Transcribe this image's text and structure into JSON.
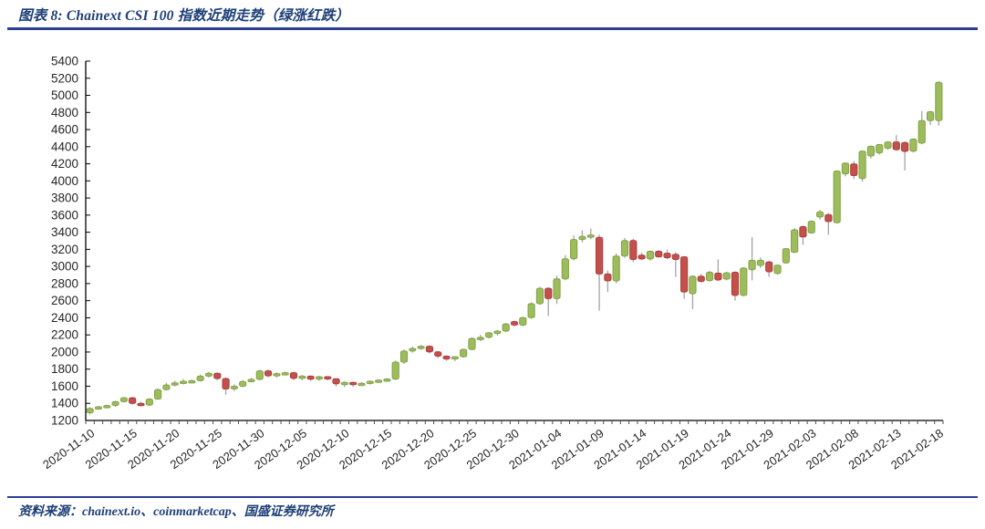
{
  "header": {
    "title": "图表 8: Chainext CSI 100 指数近期走势（绿涨红跌）"
  },
  "footer": {
    "source": "资料来源：chainext.io、coinmarketcap、国盛证券研究所"
  },
  "colors": {
    "up": "#9DBC5C",
    "up_border": "#83A248",
    "down": "#C4504C",
    "down_border": "#A93E3C",
    "wick": "#A3A3A3",
    "axis": "#000000",
    "accent_blue": "#2B3F92",
    "text_blue": "#1D3F76"
  },
  "chart_data": {
    "type": "candlestick",
    "title": "Chainext CSI 100 指数近期走势",
    "legend_note": "绿涨红跌",
    "ylim": [
      1200,
      5400
    ],
    "ytick_step": 200,
    "grid": false,
    "x_label_every": 5,
    "x_labels": [
      "2020-11-10",
      "2020-11-15",
      "2020-11-20",
      "2020-11-25",
      "2020-11-30",
      "2020-12-05",
      "2020-12-10",
      "2020-12-15",
      "2020-12-20",
      "2020-12-25",
      "2020-12-30",
      "2021-01-04",
      "2021-01-09",
      "2021-01-14",
      "2021-01-19",
      "2021-01-24",
      "2021-01-29",
      "2021-02-03",
      "2021-02-08",
      "2021-02-13",
      "2021-02-18"
    ],
    "ohlc_format": [
      "open",
      "high",
      "low",
      "close"
    ],
    "ohlc": [
      [
        1290,
        1355,
        1270,
        1340
      ],
      [
        1340,
        1370,
        1325,
        1360
      ],
      [
        1355,
        1385,
        1345,
        1375
      ],
      [
        1375,
        1430,
        1360,
        1420
      ],
      [
        1420,
        1475,
        1410,
        1465
      ],
      [
        1465,
        1475,
        1385,
        1400
      ],
      [
        1400,
        1420,
        1365,
        1380
      ],
      [
        1380,
        1460,
        1372,
        1450
      ],
      [
        1450,
        1575,
        1443,
        1560
      ],
      [
        1560,
        1640,
        1550,
        1615
      ],
      [
        1615,
        1665,
        1598,
        1640
      ],
      [
        1640,
        1685,
        1622,
        1658
      ],
      [
        1650,
        1680,
        1636,
        1665
      ],
      [
        1665,
        1735,
        1655,
        1718
      ],
      [
        1718,
        1768,
        1702,
        1752
      ],
      [
        1752,
        1762,
        1668,
        1690
      ],
      [
        1690,
        1700,
        1500,
        1568
      ],
      [
        1568,
        1622,
        1545,
        1600
      ],
      [
        1600,
        1672,
        1590,
        1655
      ],
      [
        1655,
        1700,
        1645,
        1680
      ],
      [
        1680,
        1792,
        1670,
        1780
      ],
      [
        1780,
        1795,
        1702,
        1722
      ],
      [
        1722,
        1762,
        1700,
        1748
      ],
      [
        1748,
        1772,
        1730,
        1758
      ],
      [
        1758,
        1766,
        1672,
        1692
      ],
      [
        1692,
        1732,
        1670,
        1718
      ],
      [
        1718,
        1726,
        1662,
        1682
      ],
      [
        1682,
        1722,
        1665,
        1712
      ],
      [
        1712,
        1720,
        1668,
        1688
      ],
      [
        1688,
        1692,
        1598,
        1628
      ],
      [
        1628,
        1658,
        1590,
        1645
      ],
      [
        1645,
        1652,
        1593,
        1618
      ],
      [
        1618,
        1648,
        1605,
        1635
      ],
      [
        1635,
        1668,
        1620,
        1658
      ],
      [
        1658,
        1682,
        1645,
        1672
      ],
      [
        1672,
        1695,
        1652,
        1685
      ],
      [
        1685,
        1898,
        1672,
        1882
      ],
      [
        1882,
        2028,
        1862,
        2012
      ],
      [
        2012,
        2062,
        1992,
        2042
      ],
      [
        2042,
        2082,
        2025,
        2068
      ],
      [
        2068,
        2078,
        1982,
        2002
      ],
      [
        2002,
        2012,
        1928,
        1952
      ],
      [
        1952,
        1962,
        1898,
        1918
      ],
      [
        1918,
        1952,
        1893,
        1945
      ],
      [
        1945,
        2038,
        1935,
        2030
      ],
      [
        2030,
        2172,
        2022,
        2158
      ],
      [
        2158,
        2202,
        2128,
        2172
      ],
      [
        2172,
        2232,
        2158,
        2225
      ],
      [
        2225,
        2255,
        2192,
        2245
      ],
      [
        2245,
        2338,
        2235,
        2328
      ],
      [
        2355,
        2368,
        2298,
        2315
      ],
      [
        2315,
        2412,
        2302,
        2402
      ],
      [
        2402,
        2582,
        2390,
        2565
      ],
      [
        2565,
        2762,
        2552,
        2745
      ],
      [
        2745,
        2758,
        2422,
        2625
      ],
      [
        2625,
        2892,
        2562,
        2855
      ],
      [
        2855,
        3132,
        2838,
        3090
      ],
      [
        3090,
        3362,
        3072,
        3315
      ],
      [
        3315,
        3422,
        3282,
        3352
      ],
      [
        3352,
        3442,
        3318,
        3368
      ],
      [
        3340,
        3372,
        2482,
        2912
      ],
      [
        2912,
        2952,
        2702,
        2832
      ],
      [
        2832,
        3152,
        2802,
        3122
      ],
      [
        3122,
        3332,
        3102,
        3302
      ],
      [
        3302,
        3322,
        3052,
        3082
      ],
      [
        3132,
        3162,
        3072,
        3088
      ],
      [
        3088,
        3185,
        3068,
        3178
      ],
      [
        3178,
        3192,
        3105,
        3112
      ],
      [
        3155,
        3198,
        3088,
        3102
      ],
      [
        3142,
        3168,
        2878,
        3082
      ],
      [
        3112,
        3122,
        2622,
        2702
      ],
      [
        2682,
        2895,
        2502,
        2885
      ],
      [
        2885,
        2912,
        2812,
        2825
      ],
      [
        2835,
        2948,
        2822,
        2932
      ],
      [
        2922,
        3082,
        2832,
        2842
      ],
      [
        2852,
        2938,
        2838,
        2925
      ],
      [
        2932,
        2942,
        2602,
        2662
      ],
      [
        2662,
        2992,
        2652,
        2982
      ],
      [
        2962,
        3342,
        2838,
        3072
      ],
      [
        3012,
        3105,
        2982,
        3072
      ],
      [
        3052,
        3068,
        2878,
        2938
      ],
      [
        2918,
        3022,
        2905,
        3015
      ],
      [
        3042,
        3215,
        3032,
        3208
      ],
      [
        3165,
        3448,
        3158,
        3428
      ],
      [
        3465,
        3478,
        3252,
        3345
      ],
      [
        3392,
        3538,
        3382,
        3528
      ],
      [
        3578,
        3662,
        3548,
        3638
      ],
      [
        3605,
        3625,
        3372,
        3525
      ],
      [
        3512,
        4122,
        3502,
        4115
      ],
      [
        4082,
        4218,
        4052,
        4208
      ],
      [
        4198,
        4232,
        4022,
        4062
      ],
      [
        4028,
        4358,
        3992,
        4348
      ],
      [
        4292,
        4412,
        4262,
        4405
      ],
      [
        4328,
        4432,
        4308,
        4425
      ],
      [
        4382,
        4462,
        4362,
        4455
      ],
      [
        4455,
        4535,
        4352,
        4365
      ],
      [
        4448,
        4462,
        4122,
        4345
      ],
      [
        4348,
        4498,
        4332,
        4488
      ],
      [
        4442,
        4815,
        4428,
        4705
      ],
      [
        4705,
        4818,
        4652,
        4808
      ],
      [
        4705,
        5162,
        4648,
        5152
      ]
    ]
  }
}
